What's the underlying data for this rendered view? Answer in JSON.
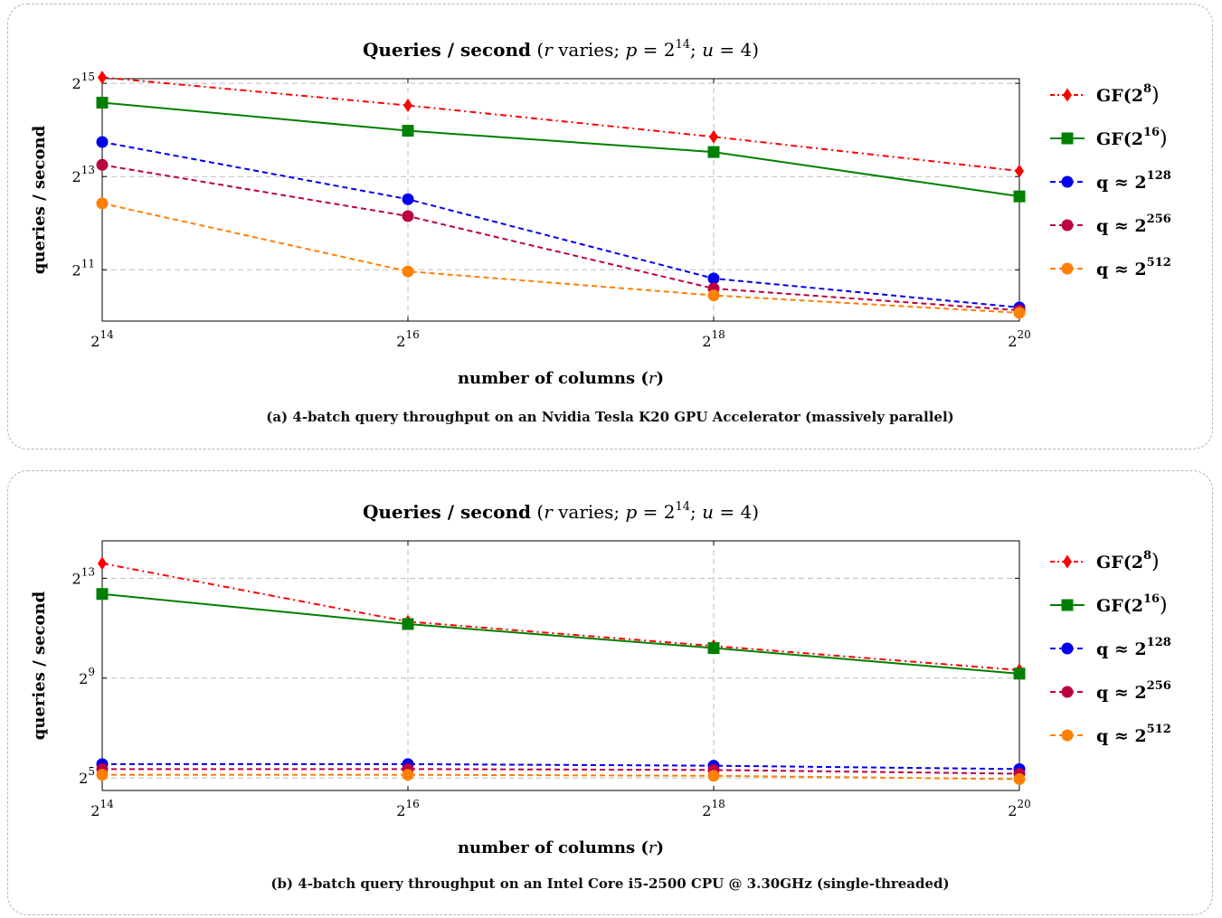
{
  "charts": [
    {
      "caption_tag": "(a)",
      "caption": "4-batch query throughput on an Nvidia Tesla K20 GPU Accelerator (massively parallel)",
      "chart_data": {
        "type": "line",
        "title": "Queries / second (r varies; p = 2^14; u = 4)",
        "title_parts": {
          "bold": "Queries / second",
          "r": "r",
          "varies": "varies;",
          "p": "p",
          "eq": "=",
          "base": "2",
          "exp": "14",
          "u": "u",
          "u_val": "= 4)"
        },
        "xlabel": "number of columns (r)",
        "xlabel_parts": {
          "text": "number of columns (",
          "r": "r",
          "close": ")"
        },
        "ylabel": "queries / second",
        "x_scale": "log2",
        "y_scale": "log2",
        "x_exp_range": [
          14,
          20
        ],
        "y_exp_range": [
          9.9,
          15.1
        ],
        "x_ticks": [
          {
            "base": "2",
            "exp": "14",
            "e": 14
          },
          {
            "base": "2",
            "exp": "16",
            "e": 16
          },
          {
            "base": "2",
            "exp": "18",
            "e": 18
          },
          {
            "base": "2",
            "exp": "20",
            "e": 20
          }
        ],
        "y_ticks": [
          {
            "base": "2",
            "exp": "11",
            "e": 11
          },
          {
            "base": "2",
            "exp": "13",
            "e": 13
          },
          {
            "base": "2",
            "exp": "15",
            "e": 15
          }
        ],
        "grid": true,
        "legend_position": "right",
        "x": [
          16384,
          65536,
          262144,
          1048576
        ],
        "series": [
          {
            "name": "GF(2^8)",
            "label_base": "GF(2",
            "label_exp": "8",
            "label_tail": ")",
            "color": "#ff0000",
            "marker": "diamond",
            "dash": "7 4 2 4",
            "values": [
              35800,
              23600,
              14800,
              8900
            ]
          },
          {
            "name": "GF(2^16)",
            "label_base": "GF(2",
            "label_exp": "16",
            "label_tail": ")",
            "color": "#008000",
            "marker": "square",
            "dash": "",
            "values": [
              24600,
              16200,
              11800,
              6100
            ]
          },
          {
            "name": "q ≈ 2^128",
            "label_base": "q ≈ 2",
            "label_exp": "128",
            "label_tail": "",
            "color": "#0000ee",
            "marker": "circle",
            "dash": "6 4",
            "values": [
              13700,
              5850,
              1800,
              1170
            ]
          },
          {
            "name": "q ≈ 2^256",
            "label_base": "q ≈ 2",
            "label_exp": "256",
            "label_tail": "",
            "color": "#bb0044",
            "marker": "circle",
            "dash": "6 4",
            "values": [
              9750,
              4550,
              1550,
              1120
            ]
          },
          {
            "name": "q ≈ 2^512",
            "label_base": "q ≈ 2",
            "label_exp": "512",
            "label_tail": "",
            "color": "#ff8000",
            "marker": "circle",
            "dash": "6 4",
            "values": [
              5500,
              2000,
              1400,
              1080
            ]
          }
        ]
      }
    },
    {
      "caption_tag": "(b)",
      "caption": "4-batch query throughput on an Intel Core i5-2500 CPU @ 3.30GHz (single-threaded)",
      "chart_data": {
        "type": "line",
        "title": "Queries / second (r varies; p = 2^14; u = 4)",
        "title_parts": {
          "bold": "Queries / second",
          "r": "r",
          "varies": "varies;",
          "p": "p",
          "eq": "=",
          "base": "2",
          "exp": "14",
          "u": "u",
          "u_val": "= 4)"
        },
        "xlabel": "number of columns (r)",
        "xlabel_parts": {
          "text": "number of columns (",
          "r": "r",
          "close": ")"
        },
        "ylabel": "queries / second",
        "x_scale": "log2",
        "y_scale": "log2",
        "x_exp_range": [
          14,
          20
        ],
        "y_exp_range": [
          4.5,
          14.5
        ],
        "x_ticks": [
          {
            "base": "2",
            "exp": "14",
            "e": 14
          },
          {
            "base": "2",
            "exp": "16",
            "e": 16
          },
          {
            "base": "2",
            "exp": "18",
            "e": 18
          },
          {
            "base": "2",
            "exp": "20",
            "e": 20
          }
        ],
        "y_ticks": [
          {
            "base": "2",
            "exp": "5",
            "e": 5
          },
          {
            "base": "2",
            "exp": "9",
            "e": 9
          },
          {
            "base": "2",
            "exp": "13",
            "e": 13
          }
        ],
        "grid": true,
        "legend_position": "right",
        "x": [
          16384,
          65536,
          262144,
          1048576
        ],
        "series": [
          {
            "name": "GF(2^8)",
            "label_base": "GF(2",
            "label_exp": "8",
            "label_tail": ")",
            "color": "#ff0000",
            "marker": "diamond",
            "dash": "7 4 2 4",
            "values": [
              12400,
              2460,
              1250,
              640
            ]
          },
          {
            "name": "GF(2^16)",
            "label_base": "GF(2",
            "label_exp": "16",
            "label_tail": ")",
            "color": "#008000",
            "marker": "square",
            "dash": "",
            "values": [
              5300,
              2300,
              1180,
              580
            ]
          },
          {
            "name": "q ≈ 2^128",
            "label_base": "q ≈ 2",
            "label_exp": "128",
            "label_tail": "",
            "color": "#0000ee",
            "marker": "circle",
            "dash": "6 4",
            "values": [
              47,
              47,
              45,
              41
            ]
          },
          {
            "name": "q ≈ 2^256",
            "label_base": "q ≈ 2",
            "label_exp": "256",
            "label_tail": "",
            "color": "#bb0044",
            "marker": "circle",
            "dash": "6 4",
            "values": [
              41,
              41,
              40,
              36
            ]
          },
          {
            "name": "q ≈ 2^512",
            "label_base": "q ≈ 2",
            "label_exp": "512",
            "label_tail": "",
            "color": "#ff8000",
            "marker": "circle",
            "dash": "6 4",
            "values": [
              35,
              35,
              34,
              31
            ]
          }
        ]
      }
    }
  ]
}
